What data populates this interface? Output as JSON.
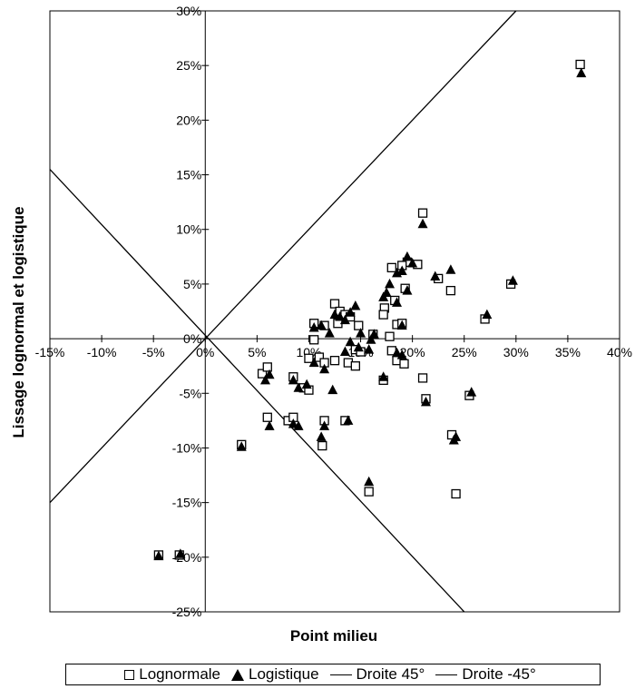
{
  "chart_data": {
    "type": "scatter",
    "xlabel": "Point milieu",
    "ylabel": "Lissage lognormal et logistique",
    "xlim": [
      -0.15,
      0.4
    ],
    "ylim": [
      -0.25,
      0.3
    ],
    "x_ticks": [
      -0.15,
      -0.1,
      -0.05,
      0.0,
      0.05,
      0.1,
      0.15,
      0.2,
      0.25,
      0.3,
      0.35,
      0.4
    ],
    "x_tick_labels": [
      "-15%",
      "-10%",
      "-5%",
      "0%",
      "5%",
      "10%",
      "15%",
      "20%",
      "25%",
      "30%",
      "35%",
      "40%"
    ],
    "y_ticks": [
      -0.25,
      -0.2,
      -0.15,
      -0.1,
      -0.05,
      0.0,
      0.05,
      0.1,
      0.15,
      0.2,
      0.25,
      0.3
    ],
    "y_tick_labels": [
      "-25%",
      "-20%",
      "-15%",
      "-10%",
      "-5%",
      "0%",
      "5%",
      "10%",
      "15%",
      "20%",
      "25%",
      "30%"
    ],
    "grid": false,
    "legend_position": "bottom",
    "series": [
      {
        "name": "Lognormale",
        "marker": "square-open",
        "points": [
          [
            0.362,
            0.251
          ],
          [
            0.21,
            0.115
          ],
          [
            0.195,
            0.07
          ],
          [
            0.19,
            0.067
          ],
          [
            0.18,
            0.065
          ],
          [
            0.205,
            0.068
          ],
          [
            0.225,
            0.055
          ],
          [
            0.237,
            0.044
          ],
          [
            0.295,
            0.05
          ],
          [
            0.193,
            0.046
          ],
          [
            0.183,
            0.035
          ],
          [
            0.173,
            0.028
          ],
          [
            0.27,
            0.018
          ],
          [
            0.125,
            0.032
          ],
          [
            0.13,
            0.025
          ],
          [
            0.135,
            0.022
          ],
          [
            0.14,
            0.02
          ],
          [
            0.128,
            0.014
          ],
          [
            0.172,
            0.022
          ],
          [
            0.105,
            0.014
          ],
          [
            0.115,
            0.012
          ],
          [
            0.148,
            0.012
          ],
          [
            0.185,
            0.013
          ],
          [
            0.19,
            0.014
          ],
          [
            0.162,
            0.004
          ],
          [
            0.178,
            0.002
          ],
          [
            0.105,
            -0.001
          ],
          [
            0.145,
            -0.01
          ],
          [
            0.18,
            -0.011
          ],
          [
            0.15,
            -0.012
          ],
          [
            0.1,
            -0.018
          ],
          [
            0.11,
            -0.017
          ],
          [
            0.125,
            -0.02
          ],
          [
            0.138,
            -0.022
          ],
          [
            0.185,
            -0.02
          ],
          [
            0.192,
            -0.023
          ],
          [
            0.055,
            -0.032
          ],
          [
            0.06,
            -0.026
          ],
          [
            0.085,
            -0.035
          ],
          [
            0.095,
            -0.045
          ],
          [
            0.1,
            -0.047
          ],
          [
            0.115,
            -0.022
          ],
          [
            0.145,
            -0.025
          ],
          [
            0.172,
            -0.038
          ],
          [
            0.21,
            -0.036
          ],
          [
            0.213,
            -0.055
          ],
          [
            0.255,
            -0.052
          ],
          [
            0.06,
            -0.072
          ],
          [
            0.08,
            -0.075
          ],
          [
            0.085,
            -0.072
          ],
          [
            0.115,
            -0.075
          ],
          [
            0.135,
            -0.075
          ],
          [
            0.035,
            -0.097
          ],
          [
            0.113,
            -0.098
          ],
          [
            0.238,
            -0.088
          ],
          [
            0.158,
            -0.14
          ],
          [
            0.242,
            -0.142
          ],
          [
            -0.045,
            -0.198
          ],
          [
            -0.025,
            -0.198
          ]
        ]
      },
      {
        "name": "Logistique",
        "marker": "triangle-filled",
        "points": [
          [
            0.363,
            0.243
          ],
          [
            0.21,
            0.105
          ],
          [
            0.195,
            0.075
          ],
          [
            0.2,
            0.069
          ],
          [
            0.185,
            0.06
          ],
          [
            0.222,
            0.057
          ],
          [
            0.237,
            0.063
          ],
          [
            0.297,
            0.053
          ],
          [
            0.178,
            0.05
          ],
          [
            0.19,
            0.062
          ],
          [
            0.195,
            0.044
          ],
          [
            0.185,
            0.033
          ],
          [
            0.172,
            0.038
          ],
          [
            0.175,
            0.042
          ],
          [
            0.272,
            0.022
          ],
          [
            0.145,
            0.03
          ],
          [
            0.14,
            0.024
          ],
          [
            0.135,
            0.017
          ],
          [
            0.13,
            0.02
          ],
          [
            0.125,
            0.022
          ],
          [
            0.12,
            0.005
          ],
          [
            0.105,
            0.01
          ],
          [
            0.112,
            0.012
          ],
          [
            0.15,
            0.005
          ],
          [
            0.163,
            0.004
          ],
          [
            0.19,
            0.012
          ],
          [
            0.16,
            -0.001
          ],
          [
            0.14,
            -0.003
          ],
          [
            0.148,
            -0.008
          ],
          [
            0.158,
            -0.01
          ],
          [
            0.105,
            -0.022
          ],
          [
            0.115,
            -0.028
          ],
          [
            0.135,
            -0.012
          ],
          [
            0.185,
            -0.013
          ],
          [
            0.19,
            -0.015
          ],
          [
            0.058,
            -0.038
          ],
          [
            0.062,
            -0.033
          ],
          [
            0.085,
            -0.038
          ],
          [
            0.09,
            -0.045
          ],
          [
            0.098,
            -0.042
          ],
          [
            0.123,
            -0.047
          ],
          [
            0.172,
            -0.035
          ],
          [
            0.213,
            -0.058
          ],
          [
            0.257,
            -0.049
          ],
          [
            0.062,
            -0.08
          ],
          [
            0.085,
            -0.078
          ],
          [
            0.09,
            -0.08
          ],
          [
            0.115,
            -0.08
          ],
          [
            0.112,
            -0.09
          ],
          [
            0.138,
            -0.075
          ],
          [
            0.035,
            -0.099
          ],
          [
            0.24,
            -0.093
          ],
          [
            0.242,
            -0.09
          ],
          [
            0.158,
            -0.131
          ],
          [
            -0.045,
            -0.199
          ],
          [
            -0.024,
            -0.197
          ]
        ]
      },
      {
        "name": "Droite 45°",
        "type": "line",
        "points": [
          [
            -0.15,
            -0.15
          ],
          [
            0.3,
            0.3
          ]
        ]
      },
      {
        "name": "Droite -45°",
        "type": "line",
        "points": [
          [
            -0.15,
            0.155
          ],
          [
            0.25,
            -0.25
          ]
        ]
      }
    ]
  },
  "legend": {
    "items": [
      {
        "label": "Lognormale",
        "icon": "open-square"
      },
      {
        "label": "Logistique",
        "icon": "filled-triangle"
      },
      {
        "label": "Droite 45°",
        "icon": "line"
      },
      {
        "label": "Droite -45°",
        "icon": "line"
      }
    ]
  }
}
